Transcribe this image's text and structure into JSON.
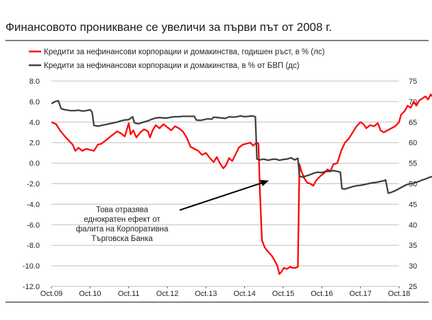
{
  "chart_data": {
    "type": "line",
    "title": "Финансовото проникване се увеличи за първи път от 2008 г.",
    "x_tick_labels": [
      "Oct.09",
      "Oct.10",
      "Oct.11",
      "Oct.12",
      "Oct.13",
      "Oct.14",
      "Oct.15",
      "Oct.16",
      "Oct.17",
      "Oct.18"
    ],
    "y_left": {
      "ticks": [
        "8.0",
        "6.0",
        "4.0",
        "2.0",
        "0.0",
        "-2.0",
        "-4.0",
        "-6.0",
        "-8.0",
        "-10.0",
        "-12.0"
      ],
      "range": [
        -12,
        8
      ]
    },
    "y_right": {
      "ticks": [
        "75",
        "70",
        "65",
        "60",
        "55",
        "50",
        "45",
        "40",
        "35",
        "30",
        "25"
      ],
      "range": [
        25,
        75
      ]
    },
    "grid": "horizontal",
    "legend_position": "top-left",
    "annotation": {
      "lines": [
        "Това отразява",
        "еднократен ефект от",
        "фалита на Корпоративна",
        "Търговска Банка"
      ]
    },
    "series": [
      {
        "name": "Кредити за нефинансови корпорации и домакинства, годишен ръст, в % (лс)",
        "color": "#ff0000",
        "axis": "left",
        "points": [
          [
            0.0,
            4.0
          ],
          [
            0.12,
            3.8
          ],
          [
            0.22,
            3.2
          ],
          [
            0.35,
            2.6
          ],
          [
            0.45,
            2.2
          ],
          [
            0.55,
            1.8
          ],
          [
            0.62,
            1.2
          ],
          [
            0.7,
            1.5
          ],
          [
            0.8,
            1.2
          ],
          [
            0.9,
            1.4
          ],
          [
            1.0,
            1.3
          ],
          [
            1.1,
            1.2
          ],
          [
            1.2,
            1.8
          ],
          [
            1.3,
            1.9
          ],
          [
            1.4,
            2.2
          ],
          [
            1.5,
            2.5
          ],
          [
            1.6,
            2.8
          ],
          [
            1.7,
            3.1
          ],
          [
            1.8,
            2.9
          ],
          [
            1.9,
            2.6
          ],
          [
            2.0,
            3.9
          ],
          [
            2.05,
            2.8
          ],
          [
            2.12,
            3.2
          ],
          [
            2.2,
            2.5
          ],
          [
            2.3,
            3.0
          ],
          [
            2.4,
            3.3
          ],
          [
            2.5,
            3.1
          ],
          [
            2.55,
            2.5
          ],
          [
            2.62,
            3.2
          ],
          [
            2.7,
            3.7
          ],
          [
            2.8,
            3.4
          ],
          [
            2.9,
            3.8
          ],
          [
            3.0,
            3.5
          ],
          [
            3.1,
            3.2
          ],
          [
            3.2,
            3.6
          ],
          [
            3.3,
            3.4
          ],
          [
            3.4,
            3.1
          ],
          [
            3.5,
            2.5
          ],
          [
            3.6,
            1.6
          ],
          [
            3.7,
            1.4
          ],
          [
            3.8,
            1.2
          ],
          [
            3.9,
            0.8
          ],
          [
            4.0,
            1.0
          ],
          [
            4.1,
            0.5
          ],
          [
            4.2,
            0.1
          ],
          [
            4.28,
            0.6
          ],
          [
            4.36,
            0.0
          ],
          [
            4.45,
            -0.5
          ],
          [
            4.52,
            -0.2
          ],
          [
            4.6,
            0.5
          ],
          [
            4.68,
            0.2
          ],
          [
            4.76,
            0.8
          ],
          [
            4.85,
            1.5
          ],
          [
            4.95,
            1.8
          ],
          [
            5.05,
            1.9
          ],
          [
            5.15,
            2.0
          ],
          [
            5.22,
            1.7
          ],
          [
            5.28,
            1.9
          ],
          [
            5.32,
            2.0
          ],
          [
            5.36,
            1.9
          ],
          [
            5.4,
            -3.0
          ],
          [
            5.45,
            -7.5
          ],
          [
            5.52,
            -8.2
          ],
          [
            5.6,
            -8.6
          ],
          [
            5.7,
            -9.0
          ],
          [
            5.78,
            -9.5
          ],
          [
            5.85,
            -10.0
          ],
          [
            5.9,
            -10.8
          ],
          [
            5.95,
            -10.6
          ],
          [
            6.02,
            -10.2
          ],
          [
            6.1,
            -10.3
          ],
          [
            6.18,
            -10.1
          ],
          [
            6.25,
            -10.2
          ],
          [
            6.32,
            -10.2
          ],
          [
            6.38,
            -10.1
          ],
          [
            6.42,
            -0.1
          ],
          [
            6.47,
            -0.8
          ],
          [
            6.55,
            -1.5
          ],
          [
            6.62,
            -1.9
          ],
          [
            6.7,
            -2.0
          ],
          [
            6.78,
            -2.2
          ],
          [
            6.85,
            -1.7
          ],
          [
            6.95,
            -1.3
          ],
          [
            7.05,
            -1.0
          ],
          [
            7.15,
            -0.6
          ],
          [
            7.22,
            -0.8
          ],
          [
            7.3,
            -0.1
          ],
          [
            7.4,
            0.0
          ],
          [
            7.5,
            1.2
          ],
          [
            7.6,
            2.0
          ],
          [
            7.7,
            2.4
          ],
          [
            7.8,
            3.0
          ],
          [
            7.9,
            3.6
          ],
          [
            8.0,
            4.0
          ],
          [
            8.08,
            3.8
          ],
          [
            8.15,
            3.4
          ],
          [
            8.25,
            3.7
          ],
          [
            8.35,
            3.6
          ],
          [
            8.45,
            3.9
          ],
          [
            8.52,
            3.2
          ],
          [
            8.6,
            3.0
          ],
          [
            8.7,
            3.2
          ],
          [
            8.8,
            3.4
          ],
          [
            8.9,
            3.6
          ],
          [
            9.0,
            4.0
          ],
          [
            9.05,
            4.7
          ],
          [
            9.15,
            5.1
          ],
          [
            9.22,
            5.6
          ],
          [
            9.3,
            5.4
          ],
          [
            9.38,
            6.0
          ],
          [
            9.45,
            5.6
          ],
          [
            9.52,
            6.1
          ],
          [
            9.6,
            6.3
          ],
          [
            9.68,
            6.5
          ],
          [
            9.75,
            6.2
          ],
          [
            9.82,
            6.7
          ],
          [
            9.88,
            6.4
          ],
          [
            9.95,
            6.8
          ],
          [
            10.0,
            6.9
          ]
        ]
      },
      {
        "name": "Кредити за нефинансови корпорации и домакинства, в % от БВП (дс)",
        "color": "#404040",
        "axis": "right",
        "points": [
          [
            0.0,
            69.5
          ],
          [
            0.1,
            70.0
          ],
          [
            0.18,
            70.2
          ],
          [
            0.25,
            68.3
          ],
          [
            0.35,
            68.0
          ],
          [
            0.5,
            67.8
          ],
          [
            0.6,
            67.8
          ],
          [
            0.7,
            67.9
          ],
          [
            0.8,
            67.7
          ],
          [
            0.9,
            67.8
          ],
          [
            1.0,
            68.0
          ],
          [
            1.05,
            67.5
          ],
          [
            1.1,
            64.2
          ],
          [
            1.2,
            64.0
          ],
          [
            1.35,
            64.3
          ],
          [
            1.5,
            64.6
          ],
          [
            1.6,
            64.8
          ],
          [
            1.7,
            65.0
          ],
          [
            1.8,
            65.3
          ],
          [
            1.9,
            65.5
          ],
          [
            2.0,
            65.6
          ],
          [
            2.1,
            66.3
          ],
          [
            2.15,
            64.8
          ],
          [
            2.25,
            64.6
          ],
          [
            2.35,
            64.9
          ],
          [
            2.5,
            65.3
          ],
          [
            2.6,
            65.7
          ],
          [
            2.7,
            66.0
          ],
          [
            2.8,
            66.1
          ],
          [
            2.9,
            66.0
          ],
          [
            3.0,
            66.0
          ],
          [
            3.1,
            66.2
          ],
          [
            3.2,
            66.3
          ],
          [
            3.3,
            66.3
          ],
          [
            3.4,
            66.4
          ],
          [
            3.5,
            66.4
          ],
          [
            3.6,
            66.4
          ],
          [
            3.7,
            66.4
          ],
          [
            3.75,
            65.5
          ],
          [
            3.85,
            65.4
          ],
          [
            3.95,
            65.6
          ],
          [
            4.05,
            65.8
          ],
          [
            4.15,
            65.7
          ],
          [
            4.2,
            66.2
          ],
          [
            4.3,
            66.1
          ],
          [
            4.4,
            66.0
          ],
          [
            4.5,
            65.9
          ],
          [
            4.6,
            66.3
          ],
          [
            4.7,
            66.2
          ],
          [
            4.8,
            66.3
          ],
          [
            4.9,
            66.5
          ],
          [
            5.0,
            66.3
          ],
          [
            5.1,
            66.4
          ],
          [
            5.2,
            66.5
          ],
          [
            5.28,
            66.3
          ],
          [
            5.32,
            56.0
          ],
          [
            5.4,
            55.8
          ],
          [
            5.5,
            56.0
          ],
          [
            5.6,
            55.7
          ],
          [
            5.7,
            55.9
          ],
          [
            5.8,
            56.0
          ],
          [
            5.9,
            55.7
          ],
          [
            6.0,
            55.9
          ],
          [
            6.1,
            56.0
          ],
          [
            6.2,
            56.3
          ],
          [
            6.3,
            55.8
          ],
          [
            6.38,
            56.2
          ],
          [
            6.42,
            51.8
          ],
          [
            6.5,
            51.6
          ],
          [
            6.6,
            51.9
          ],
          [
            6.7,
            52.2
          ],
          [
            6.8,
            52.6
          ],
          [
            6.9,
            52.8
          ],
          [
            7.0,
            52.7
          ],
          [
            7.1,
            53.0
          ],
          [
            7.2,
            53.0
          ],
          [
            7.3,
            53.2
          ],
          [
            7.4,
            53.0
          ],
          [
            7.48,
            52.8
          ],
          [
            7.52,
            48.8
          ],
          [
            7.6,
            48.7
          ],
          [
            7.7,
            49.0
          ],
          [
            7.8,
            49.3
          ],
          [
            7.9,
            49.5
          ],
          [
            8.0,
            49.6
          ],
          [
            8.1,
            49.8
          ],
          [
            8.2,
            50.0
          ],
          [
            8.3,
            50.2
          ],
          [
            8.4,
            50.3
          ],
          [
            8.5,
            50.5
          ],
          [
            8.6,
            50.7
          ],
          [
            8.65,
            50.9
          ],
          [
            8.72,
            47.7
          ],
          [
            8.8,
            47.9
          ],
          [
            8.9,
            48.3
          ],
          [
            9.0,
            48.8
          ],
          [
            9.1,
            49.3
          ],
          [
            9.2,
            49.8
          ],
          [
            9.3,
            50.0
          ],
          [
            9.4,
            50.2
          ],
          [
            9.5,
            50.5
          ],
          [
            9.6,
            50.9
          ],
          [
            9.7,
            51.2
          ],
          [
            9.8,
            51.6
          ],
          [
            9.9,
            51.8
          ],
          [
            10.0,
            52.0
          ]
        ]
      }
    ]
  }
}
